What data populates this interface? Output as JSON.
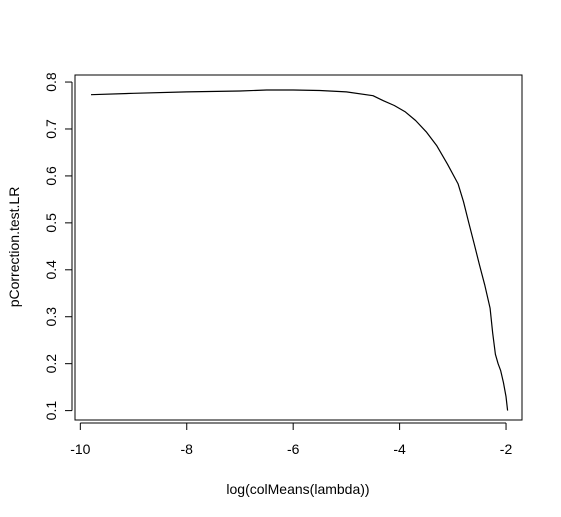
{
  "chart_data": {
    "type": "line",
    "xlabel": "log(colMeans(lambda))",
    "ylabel": "pCorrection.test.LR",
    "xlim": [
      -10.1,
      -1.7
    ],
    "ylim": [
      0.08,
      0.815
    ],
    "xticks": [
      -10,
      -8,
      -6,
      -4,
      -2
    ],
    "xtick_labels": [
      "-10",
      "-8",
      "-6",
      "-4",
      "-2"
    ],
    "yticks": [
      0.1,
      0.2,
      0.3,
      0.4,
      0.5,
      0.6,
      0.7,
      0.8
    ],
    "ytick_labels": [
      "0.1",
      "0.2",
      "0.3",
      "0.4",
      "0.5",
      "0.6",
      "0.7",
      "0.8"
    ],
    "grid": false,
    "series": [
      {
        "color": "#000000",
        "x": [
          -9.8,
          -9.0,
          -8.0,
          -7.0,
          -6.5,
          -6.0,
          -5.5,
          -5.0,
          -4.5,
          -4.3,
          -4.1,
          -3.9,
          -3.7,
          -3.5,
          -3.3,
          -3.1,
          -2.9,
          -2.8,
          -2.7,
          -2.6,
          -2.5,
          -2.4,
          -2.3,
          -2.25,
          -2.2,
          -2.15,
          -2.1,
          -2.05,
          -2.0,
          -1.97
        ],
        "y": [
          0.773,
          0.776,
          0.779,
          0.781,
          0.783,
          0.783,
          0.782,
          0.779,
          0.771,
          0.76,
          0.75,
          0.737,
          0.718,
          0.694,
          0.664,
          0.625,
          0.583,
          0.545,
          0.5,
          0.456,
          0.411,
          0.368,
          0.318,
          0.265,
          0.22,
          0.2,
          0.185,
          0.16,
          0.13,
          0.1
        ]
      }
    ]
  }
}
